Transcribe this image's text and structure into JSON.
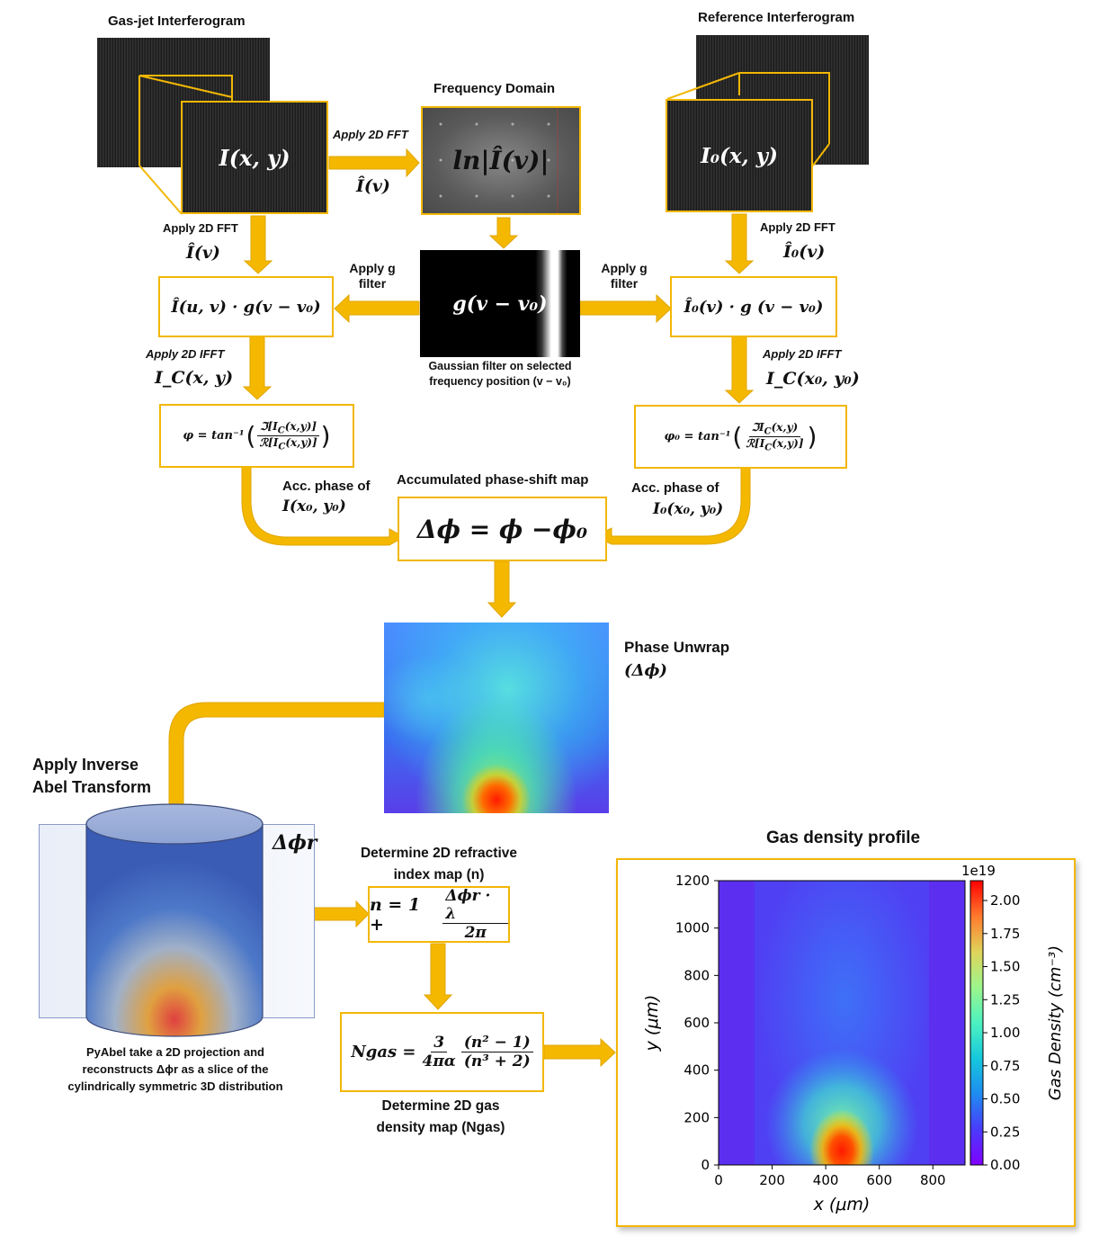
{
  "labels": {
    "gas_jet_title": "Gas-jet Interferogram",
    "reference_title": "Reference Interferogram",
    "frequency_title": "Frequency Domain",
    "apply_2d_fft": "Apply 2D FFT",
    "apply_2d_ifft": "Apply 2D IFFT",
    "apply_g_filter_line1": "Apply g",
    "apply_g_filter_line2": "filter",
    "gaussian_caption_line1": "Gaussian filter on selected",
    "gaussian_caption_line2": "frequency position (v − v₀)",
    "acc_phase_of": "Acc. phase of",
    "accumulated_title": "Accumulated phase-shift map",
    "phase_unwrap": "Phase  Unwrap",
    "phase_unwrap_sym": "(Δϕ)",
    "apply_inverse_line1": "Apply  Inverse",
    "apply_inverse_line2": "Abel Transform",
    "delta_phi_r": "Δϕr",
    "pyabel_caption_line1": "PyAbel take a 2D projection and",
    "pyabel_caption_line2": "reconstructs Δϕr as a slice of the",
    "pyabel_caption_line3": "cylindrically symmetric 3D distribution",
    "refractive_title_line1": "Determine 2D refractive",
    "refractive_title_line2": "index map (n)",
    "gas_density_title_line1": "Determine 2D gas",
    "gas_density_title_line2": "density map (Ngas)",
    "gas_density_profile": "Gas density profile"
  },
  "math": {
    "I_xy": "I(x, y)",
    "I0_xy": "I₀(x, y)",
    "I_hat_v": "Î(v)",
    "I0_hat_v": "Î₀(v)",
    "ln_term": "ln|Î(v)|",
    "g_filter": "g(v − v₀)",
    "filtered_left": "Î(u, v) · g(v − v₀)",
    "filtered_right": "Î₀(v) · g (v − v₀)",
    "Ic_xy": "I_C(x, y)",
    "Ic_x0y0": "I_C(x₀, y₀)",
    "phi_eq": "φ = tan⁻¹",
    "phi0_eq": "φ₀ = tan⁻¹",
    "acc_left": "I(x₀, y₀)",
    "acc_right": "I₀(x₀, y₀)",
    "delta_phi_eq": "Δϕ = ϕ −ϕ₀",
    "n_eq_left": "n = 1 +",
    "n_eq_num": "Δϕr · λ",
    "n_eq_den": "2π",
    "N_gas": "Ngas =",
    "N_num1": "3",
    "N_den1": "4πα",
    "N_num2": "(n² − 1)",
    "N_den2": "(n³ + 2)"
  },
  "chart_data": {
    "type": "heatmap",
    "title": "",
    "xlabel": "x (μm)",
    "ylabel": "y (μm)",
    "xlim": [
      0,
      920
    ],
    "ylim": [
      0,
      1200
    ],
    "x_ticks": [
      "0",
      "200",
      "400",
      "600",
      "800"
    ],
    "y_ticks": [
      "0",
      "200",
      "400",
      "600",
      "800",
      "1000",
      "1200"
    ],
    "colorbar_label": "Gas Density (cm⁻³)",
    "colorbar_scale": "1e19",
    "colorbar_ticks": [
      "0.00",
      "0.25",
      "0.50",
      "0.75",
      "1.00",
      "1.25",
      "1.50",
      "1.75",
      "2.00"
    ],
    "colorbar_range": [
      0,
      2.15
    ],
    "colormap": "rainbow",
    "peak_x": 460,
    "peak_y": 60
  },
  "colors": {
    "accent": "#F2B705",
    "arrow": "#F5B800"
  }
}
